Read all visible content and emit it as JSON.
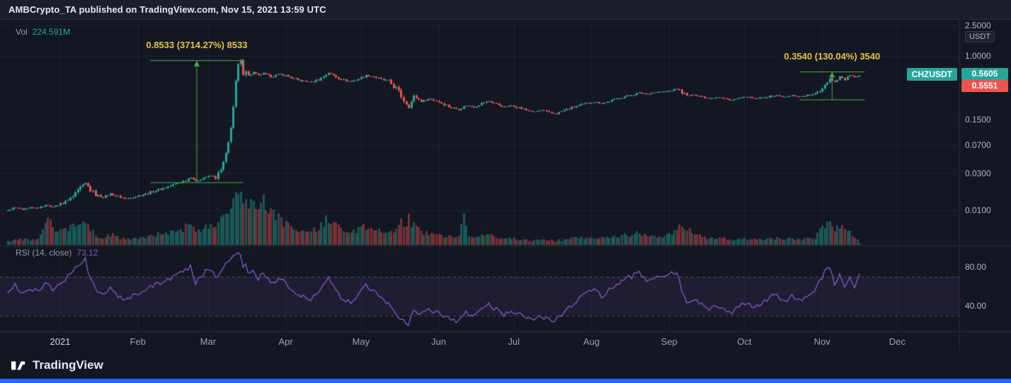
{
  "colors": {
    "background": "#131722",
    "panel": "#1a1f2b",
    "grid": "rgba(255,255,255,0.05)",
    "up": "#26a69a",
    "down": "#ef5350",
    "vol_up": "rgba(38,166,154,0.45)",
    "vol_down": "rgba(239,83,80,0.45)",
    "rsi": "#7e57c2",
    "rsi_band": "rgba(126,87,194,0.10)",
    "measure": "#4caf50",
    "annotation": "#e7c14a",
    "accent_bar": "#2962ff",
    "axis_text": "#b2b5be",
    "separator": "#2a2e39"
  },
  "header": {
    "caption": "AMBCrypto_TA published on TradingView.com, Nov 15, 2021 13:59 UTC"
  },
  "legend": {
    "vol_label": "Vol",
    "vol_value": "224.591M"
  },
  "rsi_legend": {
    "label": "RSI (14, close)",
    "value": "73.12"
  },
  "annotations": {
    "march_measure": {
      "label": "0.8533 (3714.27%) 8533",
      "from_day": 36,
      "to_day": 73,
      "from_price": 0.023,
      "to_price": 0.8763
    },
    "nov_measure": {
      "label": "0.3540 (130.04%) 3540",
      "from_day": 295,
      "to_day": 321,
      "from_price": 0.2722,
      "to_price": 0.6262
    }
  },
  "price_axis": {
    "unit": "USDT",
    "symbol_badge": "CHZUSDT",
    "last": {
      "label": "0.5605",
      "value": 0.5605
    },
    "secondary": {
      "label": "0.5551",
      "value": 0.5551
    },
    "ticks": [
      {
        "label": "2.5000",
        "value": 2.5
      },
      {
        "label": "1.0000",
        "value": 1.0
      },
      {
        "label": "0.1500",
        "value": 0.15
      },
      {
        "label": "0.0700",
        "value": 0.07
      },
      {
        "label": "0.0300",
        "value": 0.03
      },
      {
        "label": "0.0100",
        "value": 0.01
      }
    ]
  },
  "rsi_axis": {
    "ticks": [
      {
        "label": "80.00",
        "value": 80
      },
      {
        "label": "40.00",
        "value": 40
      }
    ],
    "bands": [
      70,
      30
    ]
  },
  "time_axis": {
    "labels": [
      {
        "label": "2021",
        "day": 0
      },
      {
        "label": "Feb",
        "day": 31
      },
      {
        "label": "Mar",
        "day": 59
      },
      {
        "label": "Apr",
        "day": 90
      },
      {
        "label": "May",
        "day": 120
      },
      {
        "label": "Jun",
        "day": 151
      },
      {
        "label": "Jul",
        "day": 181
      },
      {
        "label": "Aug",
        "day": 212
      },
      {
        "label": "Sep",
        "day": 243
      },
      {
        "label": "Oct",
        "day": 273
      },
      {
        "label": "Nov",
        "day": 304
      },
      {
        "label": "Dec",
        "day": 334
      }
    ]
  },
  "footer": {
    "brand": "TradingView"
  },
  "chart_data": {
    "type": "candlestick",
    "symbol": "CHZUSDT",
    "quote_currency": "USDT",
    "price_scale": "log",
    "panes": [
      "price+volume",
      "rsi"
    ],
    "last_close": 0.5605,
    "last_volume_label": "224.591M",
    "last_rsi": 73.12,
    "day_range": [
      -21,
      319
    ],
    "price_axis_ticks": [
      2.5,
      1.0,
      0.15,
      0.07,
      0.03,
      0.01
    ],
    "rsi_levels": {
      "labels": [
        80,
        40
      ],
      "dashed_bands": [
        70,
        30
      ]
    },
    "price_keyframes": [
      [
        -21,
        0.01
      ],
      [
        -18,
        0.011
      ],
      [
        -15,
        0.0103
      ],
      [
        -12,
        0.0112
      ],
      [
        -9,
        0.0106
      ],
      [
        -6,
        0.0118
      ],
      [
        -3,
        0.011
      ],
      [
        0,
        0.0122
      ],
      [
        3,
        0.0135
      ],
      [
        6,
        0.016
      ],
      [
        8,
        0.0195
      ],
      [
        10,
        0.0225
      ],
      [
        12,
        0.0185
      ],
      [
        14,
        0.016
      ],
      [
        17,
        0.0148
      ],
      [
        20,
        0.0165
      ],
      [
        23,
        0.0152
      ],
      [
        26,
        0.0142
      ],
      [
        29,
        0.015
      ],
      [
        32,
        0.0158
      ],
      [
        35,
        0.0168
      ],
      [
        38,
        0.0182
      ],
      [
        41,
        0.0195
      ],
      [
        44,
        0.021
      ],
      [
        47,
        0.0228
      ],
      [
        50,
        0.0248
      ],
      [
        52,
        0.0272
      ],
      [
        54,
        0.024
      ],
      [
        56,
        0.0258
      ],
      [
        58,
        0.0272
      ],
      [
        60,
        0.0282
      ],
      [
        62,
        0.0265
      ],
      [
        64,
        0.033
      ],
      [
        66,
        0.052
      ],
      [
        67,
        0.075
      ],
      [
        68,
        0.125
      ],
      [
        69,
        0.22
      ],
      [
        70,
        0.45
      ],
      [
        71,
        0.76
      ],
      [
        72,
        0.83
      ],
      [
        73,
        0.61
      ],
      [
        74,
        0.68
      ],
      [
        75,
        0.56
      ],
      [
        77,
        0.62
      ],
      [
        79,
        0.56
      ],
      [
        81,
        0.6
      ],
      [
        84,
        0.54
      ],
      [
        87,
        0.58
      ],
      [
        90,
        0.56
      ],
      [
        93,
        0.51
      ],
      [
        96,
        0.48
      ],
      [
        100,
        0.46
      ],
      [
        104,
        0.52
      ],
      [
        107,
        0.61
      ],
      [
        110,
        0.54
      ],
      [
        113,
        0.49
      ],
      [
        116,
        0.47
      ],
      [
        119,
        0.51
      ],
      [
        122,
        0.56
      ],
      [
        125,
        0.54
      ],
      [
        128,
        0.5
      ],
      [
        131,
        0.47
      ],
      [
        134,
        0.38
      ],
      [
        137,
        0.27
      ],
      [
        139,
        0.22
      ],
      [
        141,
        0.3
      ],
      [
        144,
        0.26
      ],
      [
        147,
        0.28
      ],
      [
        150,
        0.265
      ],
      [
        153,
        0.24
      ],
      [
        156,
        0.215
      ],
      [
        159,
        0.205
      ],
      [
        162,
        0.23
      ],
      [
        165,
        0.22
      ],
      [
        168,
        0.245
      ],
      [
        171,
        0.26
      ],
      [
        174,
        0.24
      ],
      [
        177,
        0.22
      ],
      [
        180,
        0.23
      ],
      [
        183,
        0.215
      ],
      [
        186,
        0.2
      ],
      [
        189,
        0.19
      ],
      [
        192,
        0.2
      ],
      [
        195,
        0.185
      ],
      [
        198,
        0.18
      ],
      [
        201,
        0.2
      ],
      [
        204,
        0.215
      ],
      [
        207,
        0.23
      ],
      [
        210,
        0.245
      ],
      [
        213,
        0.255
      ],
      [
        216,
        0.245
      ],
      [
        219,
        0.26
      ],
      [
        222,
        0.28
      ],
      [
        225,
        0.3
      ],
      [
        228,
        0.315
      ],
      [
        231,
        0.335
      ],
      [
        234,
        0.325
      ],
      [
        237,
        0.34
      ],
      [
        240,
        0.345
      ],
      [
        243,
        0.355
      ],
      [
        246,
        0.38
      ],
      [
        248,
        0.345
      ],
      [
        250,
        0.305
      ],
      [
        253,
        0.315
      ],
      [
        256,
        0.3
      ],
      [
        259,
        0.285
      ],
      [
        262,
        0.295
      ],
      [
        265,
        0.28
      ],
      [
        268,
        0.27
      ],
      [
        271,
        0.285
      ],
      [
        274,
        0.295
      ],
      [
        277,
        0.28
      ],
      [
        280,
        0.29
      ],
      [
        283,
        0.3
      ],
      [
        286,
        0.31
      ],
      [
        289,
        0.295
      ],
      [
        292,
        0.31
      ],
      [
        295,
        0.3
      ],
      [
        298,
        0.31
      ],
      [
        301,
        0.32
      ],
      [
        303,
        0.365
      ],
      [
        305,
        0.435
      ],
      [
        307,
        0.515
      ],
      [
        309,
        0.465
      ],
      [
        311,
        0.545
      ],
      [
        313,
        0.495
      ],
      [
        315,
        0.575
      ],
      [
        317,
        0.525
      ],
      [
        319,
        0.5605
      ]
    ],
    "volume_keyframes_millions": [
      [
        -21,
        500
      ],
      [
        -15,
        800
      ],
      [
        -10,
        600
      ],
      [
        -8,
        1200
      ],
      [
        -6,
        3000
      ],
      [
        -4,
        3400
      ],
      [
        -2,
        2400
      ],
      [
        0,
        1800
      ],
      [
        3,
        2400
      ],
      [
        6,
        2800
      ],
      [
        8,
        3000
      ],
      [
        10,
        3200
      ],
      [
        12,
        2200
      ],
      [
        14,
        1400
      ],
      [
        17,
        1000
      ],
      [
        20,
        1500
      ],
      [
        23,
        1100
      ],
      [
        26,
        800
      ],
      [
        29,
        900
      ],
      [
        32,
        1000
      ],
      [
        35,
        1200
      ],
      [
        38,
        1400
      ],
      [
        41,
        1500
      ],
      [
        44,
        1700
      ],
      [
        47,
        2000
      ],
      [
        50,
        2400
      ],
      [
        52,
        2800
      ],
      [
        54,
        1900
      ],
      [
        56,
        2200
      ],
      [
        58,
        2500
      ],
      [
        60,
        2700
      ],
      [
        62,
        2300
      ],
      [
        64,
        3200
      ],
      [
        66,
        4800
      ],
      [
        67,
        5600
      ],
      [
        68,
        6400
      ],
      [
        69,
        7200
      ],
      [
        70,
        8200
      ],
      [
        71,
        8800
      ],
      [
        72,
        8400
      ],
      [
        73,
        6800
      ],
      [
        74,
        7400
      ],
      [
        75,
        5800
      ],
      [
        77,
        6200
      ],
      [
        79,
        5200
      ],
      [
        81,
        5600
      ],
      [
        84,
        4200
      ],
      [
        87,
        3800
      ],
      [
        90,
        3000
      ],
      [
        93,
        2400
      ],
      [
        96,
        2000
      ],
      [
        100,
        1800
      ],
      [
        104,
        2600
      ],
      [
        107,
        4000
      ],
      [
        110,
        2800
      ],
      [
        113,
        2000
      ],
      [
        116,
        1800
      ],
      [
        119,
        2000
      ],
      [
        122,
        2600
      ],
      [
        125,
        2100
      ],
      [
        128,
        1900
      ],
      [
        131,
        1800
      ],
      [
        134,
        2400
      ],
      [
        137,
        3200
      ],
      [
        139,
        3600
      ],
      [
        141,
        2600
      ],
      [
        144,
        1800
      ],
      [
        147,
        1600
      ],
      [
        150,
        1400
      ],
      [
        153,
        1300
      ],
      [
        156,
        1100
      ],
      [
        159,
        1000
      ],
      [
        161,
        4200
      ],
      [
        163,
        1600
      ],
      [
        165,
        1100
      ],
      [
        168,
        1300
      ],
      [
        171,
        1400
      ],
      [
        174,
        1100
      ],
      [
        177,
        900
      ],
      [
        180,
        900
      ],
      [
        183,
        800
      ],
      [
        186,
        700
      ],
      [
        189,
        650
      ],
      [
        192,
        700
      ],
      [
        195,
        620
      ],
      [
        198,
        600
      ],
      [
        201,
        800
      ],
      [
        204,
        950
      ],
      [
        207,
        1000
      ],
      [
        210,
        1100
      ],
      [
        213,
        1150
      ],
      [
        216,
        950
      ],
      [
        219,
        1100
      ],
      [
        222,
        1300
      ],
      [
        225,
        1500
      ],
      [
        228,
        1400
      ],
      [
        231,
        1600
      ],
      [
        234,
        1200
      ],
      [
        237,
        1400
      ],
      [
        240,
        1300
      ],
      [
        243,
        1500
      ],
      [
        246,
        2000
      ],
      [
        248,
        2600
      ],
      [
        250,
        2200
      ],
      [
        253,
        1500
      ],
      [
        256,
        1200
      ],
      [
        259,
        1000
      ],
      [
        262,
        950
      ],
      [
        265,
        850
      ],
      [
        268,
        780
      ],
      [
        271,
        850
      ],
      [
        274,
        900
      ],
      [
        277,
        750
      ],
      [
        280,
        820
      ],
      [
        283,
        880
      ],
      [
        286,
        950
      ],
      [
        289,
        780
      ],
      [
        292,
        850
      ],
      [
        295,
        800
      ],
      [
        298,
        850
      ],
      [
        301,
        950
      ],
      [
        303,
        1900
      ],
      [
        305,
        2800
      ],
      [
        307,
        3300
      ],
      [
        309,
        2400
      ],
      [
        311,
        2800
      ],
      [
        313,
        2000
      ],
      [
        315,
        1700
      ],
      [
        317,
        1100
      ],
      [
        319,
        225
      ]
    ],
    "rsi_keyframes": [
      [
        -21,
        55
      ],
      [
        -18,
        62
      ],
      [
        -15,
        52
      ],
      [
        -12,
        58
      ],
      [
        -9,
        54
      ],
      [
        -6,
        64
      ],
      [
        -3,
        56
      ],
      [
        0,
        62
      ],
      [
        3,
        70
      ],
      [
        6,
        78
      ],
      [
        8,
        84
      ],
      [
        10,
        88
      ],
      [
        12,
        68
      ],
      [
        14,
        58
      ],
      [
        17,
        50
      ],
      [
        20,
        58
      ],
      [
        23,
        50
      ],
      [
        26,
        45
      ],
      [
        29,
        50
      ],
      [
        32,
        54
      ],
      [
        35,
        58
      ],
      [
        38,
        62
      ],
      [
        41,
        65
      ],
      [
        44,
        68
      ],
      [
        47,
        72
      ],
      [
        50,
        76
      ],
      [
        52,
        82
      ],
      [
        54,
        64
      ],
      [
        56,
        70
      ],
      [
        58,
        75
      ],
      [
        60,
        78
      ],
      [
        62,
        68
      ],
      [
        64,
        76
      ],
      [
        66,
        84
      ],
      [
        68,
        89
      ],
      [
        70,
        92
      ],
      [
        72,
        94
      ],
      [
        73,
        80
      ],
      [
        74,
        85
      ],
      [
        75,
        72
      ],
      [
        77,
        78
      ],
      [
        79,
        68
      ],
      [
        81,
        74
      ],
      [
        84,
        62
      ],
      [
        87,
        68
      ],
      [
        90,
        63
      ],
      [
        93,
        55
      ],
      [
        96,
        50
      ],
      [
        100,
        46
      ],
      [
        104,
        58
      ],
      [
        107,
        68
      ],
      [
        110,
        55
      ],
      [
        113,
        47
      ],
      [
        116,
        44
      ],
      [
        119,
        52
      ],
      [
        122,
        60
      ],
      [
        125,
        55
      ],
      [
        128,
        47
      ],
      [
        131,
        42
      ],
      [
        134,
        32
      ],
      [
        137,
        25
      ],
      [
        139,
        22
      ],
      [
        141,
        35
      ],
      [
        144,
        30
      ],
      [
        147,
        36
      ],
      [
        150,
        34
      ],
      [
        153,
        29
      ],
      [
        156,
        25
      ],
      [
        159,
        24
      ],
      [
        162,
        33
      ],
      [
        165,
        30
      ],
      [
        168,
        38
      ],
      [
        171,
        42
      ],
      [
        174,
        36
      ],
      [
        177,
        31
      ],
      [
        180,
        35
      ],
      [
        183,
        31
      ],
      [
        186,
        27
      ],
      [
        189,
        25
      ],
      [
        192,
        30
      ],
      [
        195,
        26
      ],
      [
        198,
        25
      ],
      [
        201,
        34
      ],
      [
        204,
        41
      ],
      [
        207,
        47
      ],
      [
        210,
        52
      ],
      [
        213,
        56
      ],
      [
        216,
        50
      ],
      [
        219,
        56
      ],
      [
        222,
        62
      ],
      [
        225,
        67
      ],
      [
        228,
        70
      ],
      [
        231,
        74
      ],
      [
        234,
        66
      ],
      [
        237,
        70
      ],
      [
        240,
        69
      ],
      [
        243,
        71
      ],
      [
        246,
        76
      ],
      [
        248,
        55
      ],
      [
        250,
        42
      ],
      [
        253,
        46
      ],
      [
        256,
        41
      ],
      [
        259,
        36
      ],
      [
        262,
        41
      ],
      [
        265,
        36
      ],
      [
        268,
        33
      ],
      [
        271,
        39
      ],
      [
        274,
        44
      ],
      [
        277,
        38
      ],
      [
        280,
        43
      ],
      [
        283,
        48
      ],
      [
        286,
        52
      ],
      [
        289,
        44
      ],
      [
        292,
        50
      ],
      [
        295,
        45
      ],
      [
        298,
        50
      ],
      [
        301,
        54
      ],
      [
        303,
        66
      ],
      [
        305,
        74
      ],
      [
        307,
        81
      ],
      [
        309,
        62
      ],
      [
        311,
        72
      ],
      [
        313,
        58
      ],
      [
        315,
        70
      ],
      [
        317,
        60
      ],
      [
        319,
        73.12
      ]
    ]
  }
}
